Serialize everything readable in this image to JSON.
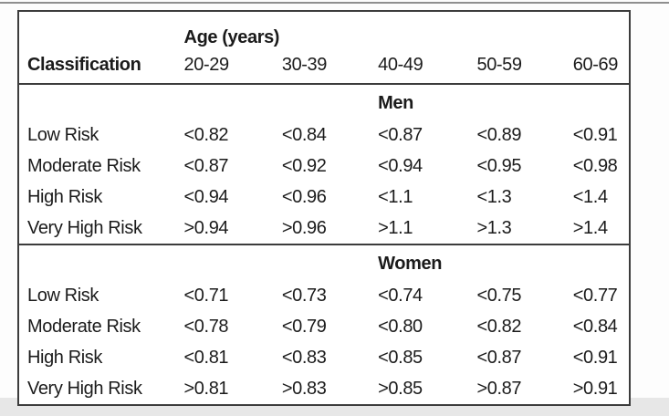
{
  "table": {
    "age_group_header": "Age (years)",
    "classification_header": "Classification",
    "age_columns": [
      "20-29",
      "30-39",
      "40-49",
      "50-59",
      "60-69"
    ],
    "sections": [
      {
        "title": "Men",
        "rows": [
          {
            "label": "Low Risk",
            "values": [
              "<0.82",
              "<0.84",
              "<0.87",
              "<0.89",
              "<0.91"
            ]
          },
          {
            "label": "Moderate Risk",
            "values": [
              "<0.87",
              "<0.92",
              "<0.94",
              "<0.95",
              "<0.98"
            ]
          },
          {
            "label": "High Risk",
            "values": [
              "<0.94",
              "<0.96",
              "<1.1",
              "<1.3",
              "<1.4"
            ]
          },
          {
            "label": "Very High Risk",
            "values": [
              ">0.94",
              ">0.96",
              ">1.1",
              ">1.3",
              ">1.4"
            ]
          }
        ]
      },
      {
        "title": "Women",
        "rows": [
          {
            "label": "Low Risk",
            "values": [
              "<0.71",
              "<0.73",
              "<0.74",
              "<0.75",
              "<0.77"
            ]
          },
          {
            "label": "Moderate Risk",
            "values": [
              "<0.78",
              "<0.79",
              "<0.80",
              "<0.82",
              "<0.84"
            ]
          },
          {
            "label": "High Risk",
            "values": [
              "<0.81",
              "<0.83",
              "<0.85",
              "<0.87",
              "<0.91"
            ]
          },
          {
            "label": "Very High Risk",
            "values": [
              ">0.81",
              ">0.83",
              ">0.85",
              ">0.87",
              ">0.91"
            ]
          }
        ]
      }
    ]
  },
  "colors": {
    "border": "#3c3c3c",
    "text": "#1b1b1b",
    "table_bg": "#ffffff",
    "page_bg": "#fdfdfd",
    "bottom_strip": "#e7e7e7",
    "crop_line": "#8f8f8f"
  }
}
